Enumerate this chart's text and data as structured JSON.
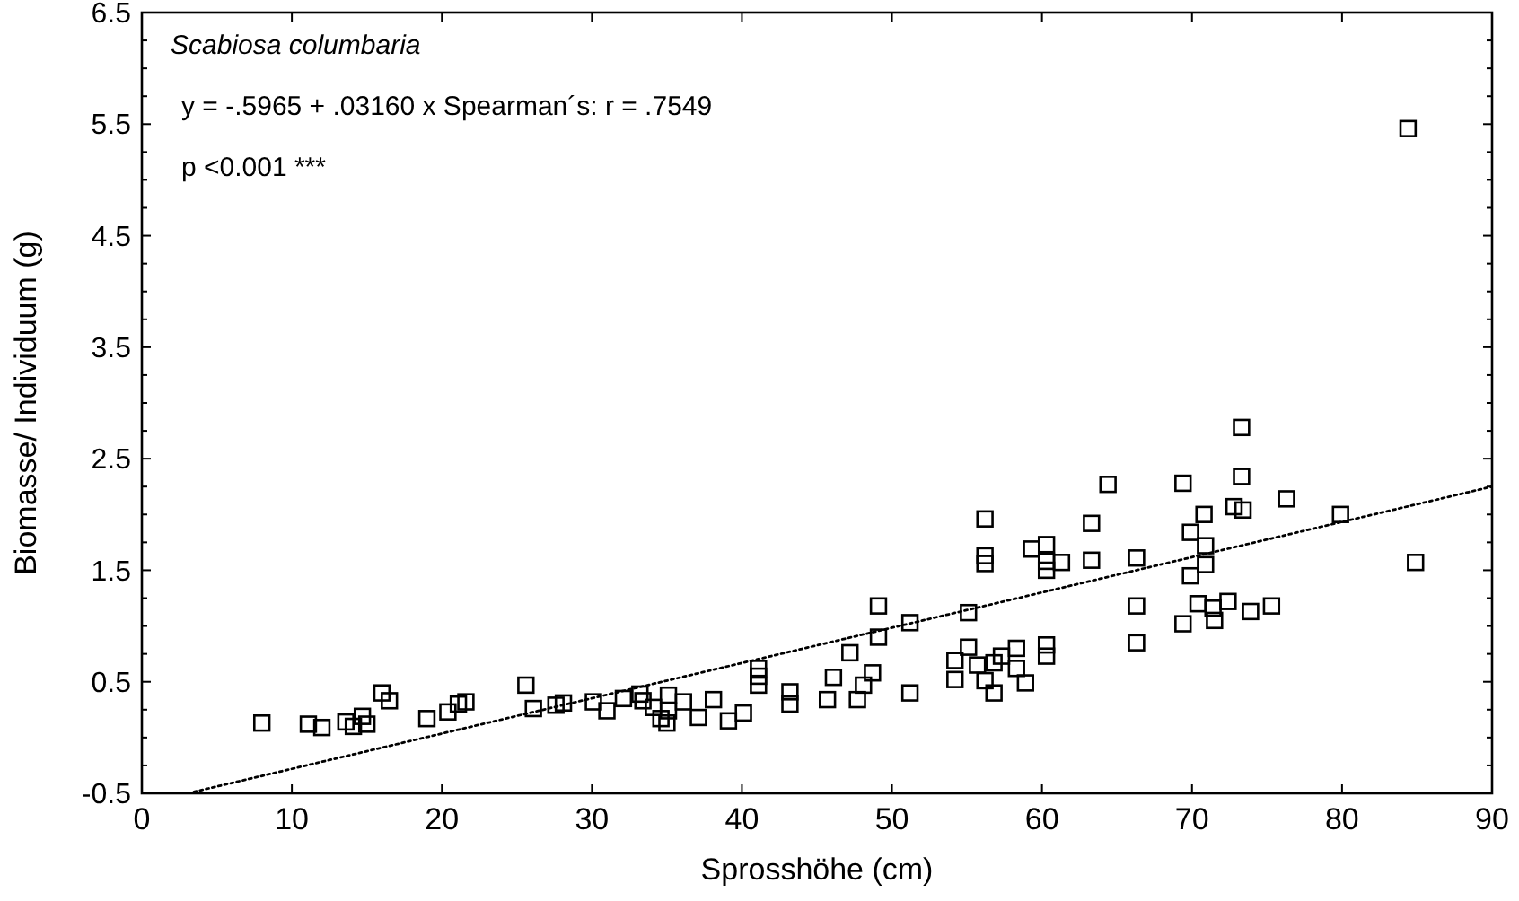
{
  "chart_data": {
    "type": "scatter",
    "xlabel": "Sprosshöhe (cm)",
    "ylabel": "Biomasse/ Individuum (g)",
    "annotations": [
      "Scabiosa columbaria",
      "y = -.5965 + .03160 x  Spearman´s: r = .7549",
      "p <0.001 ***"
    ],
    "xlim": [
      0,
      90
    ],
    "xticks": [
      0,
      10,
      20,
      30,
      40,
      50,
      60,
      70,
      80,
      90
    ],
    "ylim": [
      -0.5,
      6.5
    ],
    "yticks": [
      -0.5,
      {
        "value": -0.25,
        "label": null
      },
      {
        "value": 0,
        "label": null
      },
      {
        "value": 0.25,
        "label": null
      },
      0.5,
      {
        "value": 0.75,
        "label": null
      },
      {
        "value": 1,
        "label": null
      },
      {
        "value": 1.25,
        "label": null
      },
      1.5,
      {
        "value": 1.75,
        "label": null
      },
      {
        "value": 2,
        "label": null
      },
      {
        "value": 2.25,
        "label": null
      },
      2.5,
      {
        "value": 2.75,
        "label": null
      },
      {
        "value": 3,
        "label": null
      },
      {
        "value": 3.25,
        "label": null
      },
      3.5,
      {
        "value": 3.75,
        "label": null
      },
      {
        "value": 4,
        "label": null
      },
      {
        "value": 4.25,
        "label": null
      },
      4.5,
      {
        "value": 4.75,
        "label": null
      },
      {
        "value": 5,
        "label": null
      },
      {
        "value": 5.25,
        "label": null
      },
      5.5,
      {
        "value": 5.75,
        "label": null
      },
      {
        "value": 6,
        "label": null
      },
      {
        "value": 6.25,
        "label": null
      },
      6.5
    ],
    "grid": false,
    "series": [
      {
        "color": "#000000",
        "marker": "square",
        "x": [
          8.0,
          11.1,
          12.0,
          13.6,
          14.1,
          14.7,
          15.0,
          16.0,
          16.5,
          19.0,
          20.4,
          21.1,
          21.6,
          25.6,
          26.1,
          27.6,
          28.1,
          30.1,
          31.0,
          32.1,
          33.2,
          33.4,
          34.1,
          34.6,
          35.0,
          35.1,
          35.1,
          36.1,
          37.1,
          38.1,
          39.1,
          40.1,
          41.1,
          41.1,
          41.1,
          43.2,
          43.2,
          45.7,
          46.1,
          47.2,
          47.7,
          48.1,
          48.7,
          49.1,
          49.1,
          51.2,
          51.2,
          54.2,
          54.2,
          55.1,
          55.1,
          55.7,
          56.2,
          56.8,
          56.8,
          57.3,
          58.3,
          58.3,
          58.9,
          60.3,
          60.3,
          56.2,
          56.2,
          56.2,
          59.3,
          60.3,
          60.3,
          60.3,
          61.3,
          63.3,
          63.3,
          64.4,
          66.3,
          66.3,
          66.3,
          69.4,
          69.4,
          69.9,
          69.9,
          70.4,
          70.8,
          70.9,
          70.9,
          71.4,
          71.5,
          72.4,
          72.8,
          73.3,
          73.3,
          73.4,
          73.9,
          75.3,
          76.3,
          79.9,
          84.4,
          84.9
        ],
        "values": [
          0.13,
          0.12,
          0.09,
          0.14,
          0.1,
          0.19,
          0.12,
          0.4,
          0.33,
          0.17,
          0.23,
          0.3,
          0.32,
          0.47,
          0.26,
          0.29,
          0.31,
          0.32,
          0.24,
          0.35,
          0.39,
          0.33,
          0.27,
          0.17,
          0.13,
          0.38,
          0.24,
          0.32,
          0.18,
          0.34,
          0.15,
          0.22,
          0.62,
          0.55,
          0.47,
          0.41,
          0.3,
          0.34,
          0.54,
          0.76,
          0.34,
          0.47,
          0.58,
          1.18,
          0.9,
          1.03,
          0.4,
          0.69,
          0.52,
          1.12,
          0.81,
          0.65,
          0.51,
          0.4,
          0.67,
          0.73,
          0.8,
          0.62,
          0.49,
          0.83,
          0.73,
          1.96,
          1.63,
          1.56,
          1.69,
          1.73,
          1.58,
          1.5,
          1.57,
          1.92,
          1.59,
          2.27,
          1.61,
          1.18,
          0.85,
          2.28,
          1.02,
          1.84,
          1.45,
          1.2,
          2.0,
          1.72,
          1.55,
          1.16,
          1.05,
          1.22,
          2.07,
          2.78,
          2.34,
          2.04,
          1.13,
          1.18,
          2.14,
          2.0,
          5.46,
          1.57
        ]
      },
      {
        "type": "line",
        "color": "#000000",
        "line_style": "dotted",
        "marker": "none",
        "x": [
          3.06,
          90
        ],
        "values": [
          -0.5,
          2.25
        ]
      }
    ]
  }
}
